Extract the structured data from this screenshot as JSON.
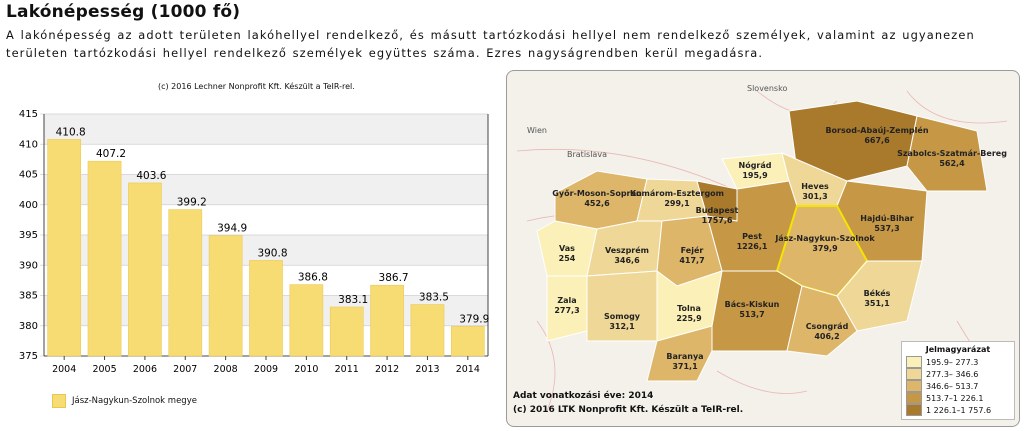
{
  "title": "Lakónépesség (1000 fő)",
  "description": "A lakónépesség az adott területen lakóhellyel rendelkező, és másutt tartózkodási hellyel nem rendelkező személyek, valamint az ugyanezen területen tartózkodási hellyel rendelkező személyek együttes száma. Ezres nagyságrendben kerül megadásra.",
  "chart_credit": "(c) 2016 Lechner Nonprofit Kft. Készült a TeIR-rel.",
  "chart_data": {
    "type": "bar",
    "categories": [
      "2004",
      "2005",
      "2006",
      "2007",
      "2008",
      "2009",
      "2010",
      "2011",
      "2012",
      "2013",
      "2014"
    ],
    "series": [
      {
        "name": "Jász-Nagykun-Szolnok megye",
        "values": [
          410.8,
          407.2,
          403.6,
          399.2,
          394.9,
          390.8,
          386.8,
          383.1,
          386.7,
          383.5,
          379.9
        ]
      }
    ],
    "yticks": [
      375,
      380,
      385,
      390,
      395,
      400,
      405,
      410,
      415
    ],
    "ylim": [
      375,
      415
    ],
    "title": "",
    "xlabel": "",
    "ylabel": "",
    "bar_color": "#f7dc74",
    "grid": true,
    "legend_position": "bottom-left"
  },
  "legend_label": "Jász-Nagykun-Szolnok megye",
  "map": {
    "footer_year": "Adat vonatkozási éve: 2014",
    "footer_credit": "(c) 2016 LTK Nonprofit Kft. Készült a TeIR-rel.",
    "labels": [
      {
        "name": "Borsod-Abaúj-Zemplén",
        "value": "667,6"
      },
      {
        "name": "Szabolcs-Szatmár-Bereg",
        "value": "562,4"
      },
      {
        "name": "Nógrád",
        "value": "195,9"
      },
      {
        "name": "Heves",
        "value": "301,3"
      },
      {
        "name": "Hajdú-Bihar",
        "value": "537,3"
      },
      {
        "name": "Győr-Moson-Sopron",
        "value": "452,6"
      },
      {
        "name": "Komárom-Esztergom",
        "value": "299,1"
      },
      {
        "name": "Budapest",
        "value": "1757,6"
      },
      {
        "name": "Pest",
        "value": "1226,1"
      },
      {
        "name": "Jász-Nagykun-Szolnok",
        "value": "379,9"
      },
      {
        "name": "Vas",
        "value": "254"
      },
      {
        "name": "Veszprém",
        "value": "346,6"
      },
      {
        "name": "Fejér",
        "value": "417,7"
      },
      {
        "name": "Békés",
        "value": "351,1"
      },
      {
        "name": "Zala",
        "value": "277,3"
      },
      {
        "name": "Somogy",
        "value": "312,1"
      },
      {
        "name": "Tolna",
        "value": "225,9"
      },
      {
        "name": "Bács-Kiskun",
        "value": "513,7"
      },
      {
        "name": "Csongrád",
        "value": "406,2"
      },
      {
        "name": "Baranya",
        "value": "371,1"
      }
    ],
    "cities": [
      "Wien",
      "Bratislava",
      "Slovensko"
    ],
    "legend": {
      "title": "Jelmagyarázat",
      "items": [
        {
          "range": "195.9–  277.3",
          "color": "#fbf0b8"
        },
        {
          "range": "277.3–  346.6",
          "color": "#efd897"
        },
        {
          "range": "346.6–  513.7",
          "color": "#ddb66a"
        },
        {
          "range": "513.7–1 226.1",
          "color": "#c69846"
        },
        {
          "range": "1 226.1–1 757.6",
          "color": "#a9792c"
        }
      ]
    }
  }
}
